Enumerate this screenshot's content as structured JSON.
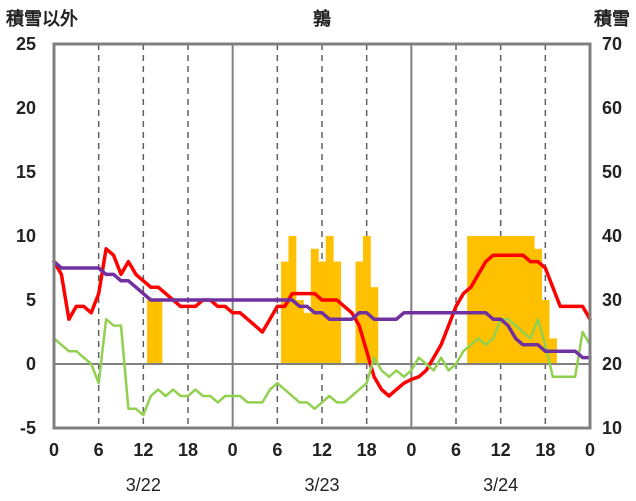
{
  "header": {
    "left_title": "積雪以外",
    "center_title": "鶉",
    "right_title": "積雪"
  },
  "chart_data": {
    "type": "bar+line",
    "y_left": {
      "min": -5,
      "max": 25,
      "ticks": [
        "-5",
        "0",
        "5",
        "10",
        "15",
        "20",
        "25"
      ]
    },
    "y_right": {
      "min": 10,
      "max": 70,
      "ticks": [
        "10",
        "20",
        "30",
        "40",
        "50",
        "60",
        "70"
      ]
    },
    "x_hour_range": [
      0,
      72
    ],
    "x_ticks": [
      "0",
      "6",
      "12",
      "18",
      "0",
      "6",
      "12",
      "18",
      "0",
      "6",
      "12",
      "18",
      "0"
    ],
    "dates": [
      "3/22",
      "3/23",
      "3/24"
    ],
    "grid": "vertical dashed every 6h, solid at day boundaries",
    "colors": {
      "bar": "#FFC000",
      "red": "#FF0000",
      "green": "#92D050",
      "purple": "#7030A0",
      "frame": "#808080"
    },
    "bars": [
      {
        "x": 13,
        "value": 5
      },
      {
        "x": 14,
        "value": 5
      },
      {
        "x": 31,
        "value": 8
      },
      {
        "x": 32,
        "value": 10
      },
      {
        "x": 33,
        "value": 5
      },
      {
        "x": 34,
        "value": 4
      },
      {
        "x": 35,
        "value": 9
      },
      {
        "x": 36,
        "value": 8
      },
      {
        "x": 37,
        "value": 10
      },
      {
        "x": 38,
        "value": 8
      },
      {
        "x": 41,
        "value": 8
      },
      {
        "x": 42,
        "value": 10
      },
      {
        "x": 43,
        "value": 6
      },
      {
        "x": 56,
        "value": 10
      },
      {
        "x": 57,
        "value": 10
      },
      {
        "x": 58,
        "value": 10
      },
      {
        "x": 59,
        "value": 10
      },
      {
        "x": 60,
        "value": 10
      },
      {
        "x": 61,
        "value": 10
      },
      {
        "x": 62,
        "value": 10
      },
      {
        "x": 63,
        "value": 10
      },
      {
        "x": 64,
        "value": 10
      },
      {
        "x": 65,
        "value": 9
      },
      {
        "x": 66,
        "value": 5
      },
      {
        "x": 67,
        "value": 2
      }
    ],
    "series": [
      {
        "color": "red",
        "axis": "left",
        "x": [
          0,
          1,
          2,
          3,
          4,
          5,
          6,
          7,
          8,
          9,
          10,
          11,
          12,
          13,
          14,
          15,
          16,
          17,
          18,
          19,
          20,
          21,
          22,
          23,
          24,
          25,
          26,
          27,
          28,
          29,
          30,
          31,
          32,
          33,
          34,
          35,
          36,
          37,
          38,
          39,
          40,
          41,
          42,
          43,
          44,
          45,
          46,
          47,
          48,
          49,
          50,
          51,
          52,
          53,
          54,
          55,
          56,
          57,
          58,
          59,
          60,
          61,
          62,
          63,
          64,
          65,
          66,
          67,
          68,
          69,
          70,
          71,
          72
        ],
        "values": [
          8,
          7,
          3.5,
          4.5,
          4.5,
          4,
          5.5,
          9,
          8.5,
          7,
          8,
          7,
          6.5,
          6,
          6,
          5.5,
          5,
          4.5,
          4.5,
          4.5,
          5,
          5,
          4.5,
          4.5,
          4,
          4,
          3.5,
          3,
          2.5,
          3.5,
          4.5,
          4.5,
          5.5,
          5.5,
          5.5,
          5.5,
          5,
          5,
          5,
          4.5,
          4,
          3,
          1,
          -1,
          -2,
          -2.5,
          -2,
          -1.5,
          -1.2,
          -1,
          -0.5,
          0.5,
          1.5,
          3,
          4.5,
          5.5,
          6,
          7,
          8,
          8.5,
          8.5,
          8.5,
          8.5,
          8.5,
          8,
          8,
          7.5,
          6,
          4.5,
          4.5,
          4.5,
          4.5,
          3.5
        ]
      },
      {
        "color": "green",
        "axis": "left",
        "x": [
          0,
          1,
          2,
          3,
          4,
          5,
          6,
          7,
          8,
          9,
          10,
          11,
          12,
          13,
          14,
          15,
          16,
          17,
          18,
          19,
          20,
          21,
          22,
          23,
          24,
          25,
          26,
          27,
          28,
          29,
          30,
          31,
          32,
          33,
          34,
          35,
          36,
          37,
          38,
          39,
          40,
          41,
          42,
          43,
          44,
          45,
          46,
          47,
          48,
          49,
          50,
          51,
          52,
          53,
          54,
          55,
          56,
          57,
          58,
          59,
          60,
          61,
          62,
          63,
          64,
          65,
          66,
          67,
          68,
          69,
          70,
          71,
          72
        ],
        "values": [
          2,
          1.5,
          1,
          1,
          0.5,
          0,
          -1.5,
          3.5,
          3,
          3,
          -3.5,
          -3.5,
          -4,
          -2.5,
          -2,
          -2.5,
          -2,
          -2.5,
          -2.5,
          -2,
          -2.5,
          -2.5,
          -3,
          -2.5,
          -2.5,
          -2.5,
          -3,
          -3,
          -3,
          -2,
          -1.5,
          -2,
          -2.5,
          -3,
          -3,
          -3.5,
          -3,
          -2.5,
          -3,
          -3,
          -2.5,
          -2,
          -1.5,
          0.5,
          -0.5,
          -1,
          -0.5,
          -1,
          -0.5,
          0.5,
          0,
          -0.5,
          0.5,
          -0.5,
          0,
          1,
          1.5,
          2,
          1.5,
          2,
          3.5,
          3.5,
          3,
          2.5,
          2,
          3.5,
          1.5,
          -1,
          -1,
          -1,
          -1,
          2.5,
          1.5
        ]
      },
      {
        "color": "purple",
        "axis": "right",
        "x": [
          0,
          1,
          2,
          3,
          4,
          5,
          6,
          7,
          8,
          9,
          10,
          11,
          12,
          13,
          14,
          15,
          16,
          17,
          18,
          19,
          20,
          21,
          22,
          23,
          24,
          25,
          26,
          27,
          28,
          29,
          30,
          31,
          32,
          33,
          34,
          35,
          36,
          37,
          38,
          39,
          40,
          41,
          42,
          43,
          44,
          45,
          46,
          47,
          48,
          49,
          50,
          51,
          52,
          53,
          54,
          55,
          56,
          57,
          58,
          59,
          60,
          61,
          62,
          63,
          64,
          65,
          66,
          67,
          68,
          69,
          70,
          71,
          72
        ],
        "values": [
          36,
          35,
          35,
          35,
          35,
          35,
          35,
          34,
          34,
          33,
          33,
          32,
          31,
          30,
          30,
          30,
          30,
          30,
          30,
          30,
          30,
          30,
          30,
          30,
          30,
          30,
          30,
          30,
          30,
          30,
          30,
          30,
          30,
          29,
          29,
          28,
          28,
          27,
          27,
          27,
          27,
          28,
          28,
          27,
          27,
          27,
          27,
          28,
          28,
          28,
          28,
          28,
          28,
          28,
          28,
          28,
          28,
          28,
          28,
          27,
          27,
          26,
          24,
          23,
          23,
          23,
          22,
          22,
          22,
          22,
          22,
          21,
          21
        ]
      }
    ]
  }
}
